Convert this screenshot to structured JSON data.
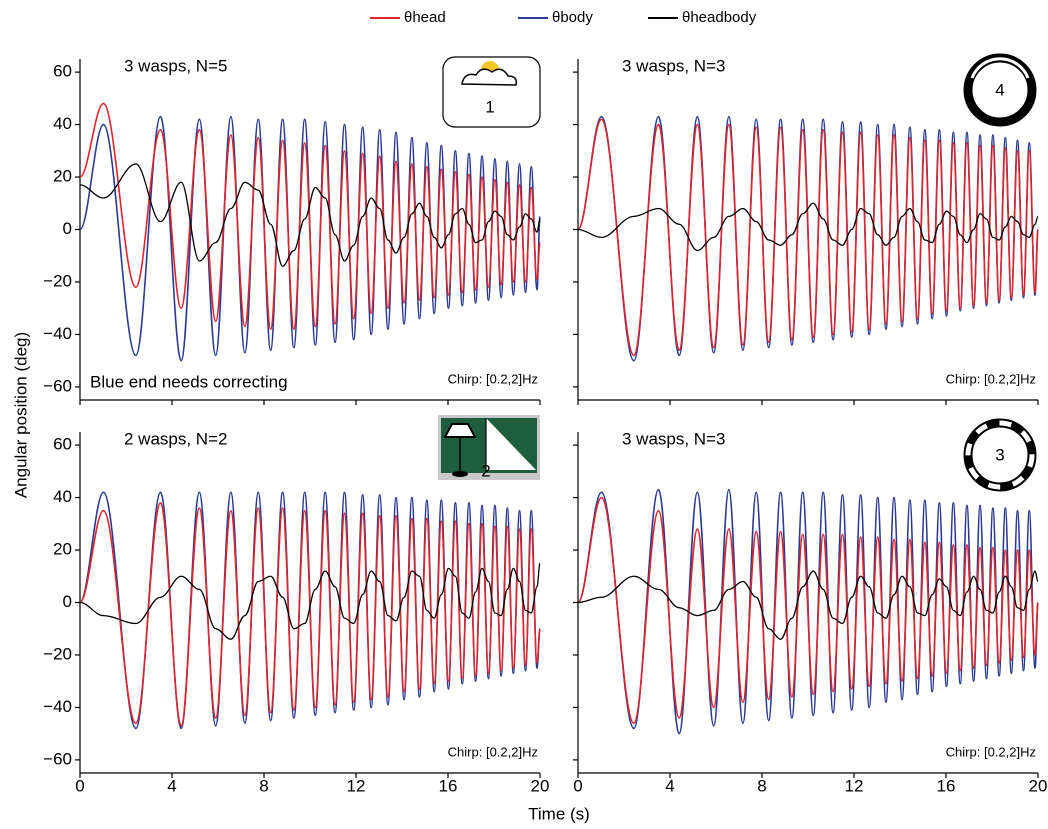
{
  "ylabel": "Angular position (deg)",
  "xlabel": "Time (s)",
  "chart_data": [
    {
      "type": "line",
      "title": "3 wasps, N=5",
      "annotation": "Chirp: [0.2,2]Hz",
      "note": "Blue end needs correcting",
      "icon_label": "1",
      "xlim": [
        0,
        20
      ],
      "ylim": [
        -65,
        65
      ],
      "xtick_labels": false,
      "ytick_labels": true,
      "xticks": [
        0,
        4,
        8,
        12,
        16,
        20
      ],
      "yticks": [
        {
          "value": -60,
          "label": "−60"
        },
        {
          "value": -40,
          "label": "−40"
        },
        {
          "value": -20,
          "label": "−20"
        },
        0,
        20,
        40,
        60
      ],
      "x": [
        0,
        1.02,
        2.43,
        3.5,
        4.4,
        5.19,
        5.9,
        6.56,
        7.17,
        7.75,
        8.29,
        8.81,
        9.3,
        9.77,
        10.23,
        10.66,
        11.09,
        11.5,
        11.9,
        12.29,
        12.66,
        13.03,
        13.39,
        13.74,
        14.09,
        14.43,
        14.76,
        15.08,
        15.4,
        15.71,
        16.02,
        16.32,
        16.62,
        16.91,
        17.2,
        17.48,
        17.76,
        18.04,
        18.31,
        18.58,
        18.84,
        19.11,
        19.37,
        19.62,
        19.87,
        20
      ],
      "series": [
        {
          "name": "θhead",
          "color": "#e0242b",
          "values": [
            20,
            48,
            -22,
            38,
            -30,
            38,
            -35,
            36,
            -37,
            35,
            -38,
            34,
            -38,
            33,
            -37,
            32,
            -36,
            30,
            -34,
            29,
            -32,
            28,
            -30,
            26,
            -28,
            25,
            -27,
            24,
            -26,
            23,
            -25,
            22,
            -24,
            21,
            -23,
            20,
            -22,
            19,
            -21,
            18,
            -20,
            17,
            -20,
            16,
            -19,
            -5
          ]
        },
        {
          "name": "θbody",
          "color": "#2a3a92",
          "values": [
            0,
            40,
            -48,
            43,
            -50,
            42,
            -48,
            43,
            -47,
            42,
            -46,
            42,
            -45,
            42,
            -44,
            41,
            -43,
            40,
            -42,
            39,
            -40,
            38,
            -38,
            37,
            -36,
            35,
            -34,
            33,
            -32,
            32,
            -30,
            30,
            -29,
            29,
            -28,
            28,
            -27,
            27,
            -26,
            26,
            -25,
            25,
            -24,
            24,
            -23,
            5
          ]
        },
        {
          "name": "θheadbody",
          "color": "#000000",
          "values": [
            17,
            12,
            25,
            3,
            18,
            -12,
            -5,
            8,
            18,
            15,
            2,
            -14,
            -8,
            4,
            16,
            12,
            -2,
            -12,
            -6,
            5,
            12,
            8,
            -4,
            -9,
            -3,
            6,
            10,
            5,
            -3,
            -7,
            -2,
            6,
            8,
            2,
            -5,
            -4,
            3,
            7,
            5,
            -2,
            -4,
            1,
            6,
            4,
            -1,
            4
          ]
        }
      ]
    },
    {
      "type": "line",
      "title": "3 wasps, N=3",
      "annotation": "Chirp: [0.2,2]Hz",
      "icon_label": "4",
      "xlim": [
        0,
        20
      ],
      "ylim": [
        -65,
        65
      ],
      "xtick_labels": false,
      "ytick_labels": false,
      "xticks": [
        0,
        4,
        8,
        12,
        16,
        20
      ],
      "yticks": [
        -60,
        -40,
        -20,
        0,
        20,
        40,
        60
      ],
      "x": [
        0,
        1.02,
        2.43,
        3.5,
        4.4,
        5.19,
        5.9,
        6.56,
        7.17,
        7.75,
        8.29,
        8.81,
        9.3,
        9.77,
        10.23,
        10.66,
        11.09,
        11.5,
        11.9,
        12.29,
        12.66,
        13.03,
        13.39,
        13.74,
        14.09,
        14.43,
        14.76,
        15.08,
        15.4,
        15.71,
        16.02,
        16.32,
        16.62,
        16.91,
        17.2,
        17.48,
        17.76,
        18.04,
        18.31,
        18.58,
        18.84,
        19.11,
        19.37,
        19.62,
        19.87,
        20
      ],
      "series": [
        {
          "name": "θhead",
          "color": "#e0242b",
          "values": [
            0,
            42,
            -48,
            40,
            -46,
            40,
            -45,
            40,
            -44,
            39,
            -43,
            39,
            -42,
            38,
            -41,
            38,
            -40,
            37,
            -39,
            37,
            -38,
            36,
            -36,
            36,
            -35,
            35,
            -34,
            34,
            -32,
            34,
            -31,
            33,
            -30,
            33,
            -29,
            32,
            -28,
            32,
            -27,
            31,
            -26,
            30,
            -25,
            30,
            -24,
            0
          ]
        },
        {
          "name": "θbody",
          "color": "#2a3a92",
          "values": [
            0,
            43,
            -50,
            43,
            -48,
            43,
            -47,
            43,
            -46,
            42,
            -45,
            42,
            -44,
            42,
            -43,
            42,
            -42,
            41,
            -41,
            41,
            -40,
            40,
            -38,
            40,
            -37,
            39,
            -36,
            38,
            -34,
            38,
            -33,
            37,
            -31,
            37,
            -30,
            36,
            -29,
            36,
            -28,
            35,
            -27,
            34,
            -26,
            33,
            -25,
            0
          ]
        },
        {
          "name": "θheadbody",
          "color": "#000000",
          "values": [
            0,
            -3,
            5,
            8,
            2,
            -8,
            -3,
            5,
            8,
            3,
            -4,
            -6,
            -2,
            6,
            10,
            4,
            -4,
            -6,
            0,
            8,
            6,
            -2,
            -6,
            -3,
            5,
            8,
            3,
            -4,
            -5,
            2,
            7,
            5,
            -2,
            -5,
            0,
            6,
            4,
            -3,
            -4,
            1,
            5,
            3,
            -2,
            -3,
            2,
            5
          ]
        }
      ]
    },
    {
      "type": "line",
      "title": "2 wasps, N=2",
      "annotation": "Chirp: [0.2,2]Hz",
      "icon_label": "2",
      "xlim": [
        0,
        20
      ],
      "ylim": [
        -65,
        65
      ],
      "xtick_labels": true,
      "ytick_labels": true,
      "xticks": [
        0,
        4,
        8,
        12,
        16,
        20
      ],
      "yticks": [
        {
          "value": -60,
          "label": "−60"
        },
        {
          "value": -40,
          "label": "−40"
        },
        {
          "value": -20,
          "label": "−20"
        },
        0,
        20,
        40,
        60
      ],
      "x": [
        0,
        1.02,
        2.43,
        3.5,
        4.4,
        5.19,
        5.9,
        6.56,
        7.17,
        7.75,
        8.29,
        8.81,
        9.3,
        9.77,
        10.23,
        10.66,
        11.09,
        11.5,
        11.9,
        12.29,
        12.66,
        13.03,
        13.39,
        13.74,
        14.09,
        14.43,
        14.76,
        15.08,
        15.4,
        15.71,
        16.02,
        16.32,
        16.62,
        16.91,
        17.2,
        17.48,
        17.76,
        18.04,
        18.31,
        18.58,
        18.84,
        19.11,
        19.37,
        19.62,
        19.87,
        20
      ],
      "series": [
        {
          "name": "θhead",
          "color": "#e0242b",
          "values": [
            0,
            35,
            -46,
            38,
            -47,
            36,
            -44,
            35,
            -43,
            36,
            -42,
            36,
            -41,
            35,
            -40,
            35,
            -39,
            34,
            -38,
            34,
            -37,
            33,
            -36,
            33,
            -34,
            32,
            -33,
            32,
            -31,
            31,
            -30,
            31,
            -29,
            30,
            -28,
            30,
            -27,
            29,
            -26,
            29,
            -25,
            28,
            -24,
            28,
            -23,
            -10
          ]
        },
        {
          "name": "θbody",
          "color": "#2a3a92",
          "values": [
            0,
            42,
            -48,
            42,
            -48,
            42,
            -47,
            42,
            -46,
            42,
            -45,
            42,
            -44,
            42,
            -43,
            42,
            -42,
            42,
            -41,
            41,
            -40,
            41,
            -39,
            40,
            -37,
            40,
            -36,
            39,
            -34,
            39,
            -33,
            38,
            -31,
            38,
            -30,
            37,
            -29,
            37,
            -28,
            36,
            -27,
            35,
            -26,
            35,
            -25,
            -10
          ]
        },
        {
          "name": "θheadbody",
          "color": "#000000",
          "values": [
            0,
            -5,
            -8,
            2,
            10,
            5,
            -10,
            -14,
            -5,
            8,
            10,
            2,
            -10,
            -8,
            5,
            12,
            6,
            -6,
            -8,
            3,
            12,
            8,
            -5,
            -7,
            2,
            12,
            10,
            -3,
            -6,
            3,
            13,
            10,
            -4,
            -6,
            4,
            13,
            8,
            -4,
            -5,
            5,
            13,
            8,
            -3,
            -4,
            6,
            15
          ]
        }
      ]
    },
    {
      "type": "line",
      "title": "3 wasps, N=3",
      "annotation": "Chirp: [0.2,2]Hz",
      "icon_label": "3",
      "xlim": [
        0,
        20
      ],
      "ylim": [
        -65,
        65
      ],
      "xtick_labels": true,
      "ytick_labels": false,
      "xticks": [
        0,
        4,
        8,
        12,
        16,
        20
      ],
      "yticks": [
        -60,
        -40,
        -20,
        0,
        20,
        40,
        60
      ],
      "x": [
        0,
        1.02,
        2.43,
        3.5,
        4.4,
        5.19,
        5.9,
        6.56,
        7.17,
        7.75,
        8.29,
        8.81,
        9.3,
        9.77,
        10.23,
        10.66,
        11.09,
        11.5,
        11.9,
        12.29,
        12.66,
        13.03,
        13.39,
        13.74,
        14.09,
        14.43,
        14.76,
        15.08,
        15.4,
        15.71,
        16.02,
        16.32,
        16.62,
        16.91,
        17.2,
        17.48,
        17.76,
        18.04,
        18.31,
        18.58,
        18.84,
        19.11,
        19.37,
        19.62,
        19.87,
        20
      ],
      "series": [
        {
          "name": "θhead",
          "color": "#e0242b",
          "values": [
            0,
            40,
            -46,
            35,
            -44,
            28,
            -40,
            28,
            -38,
            27,
            -37,
            27,
            -36,
            26,
            -35,
            26,
            -34,
            26,
            -33,
            25,
            -32,
            25,
            -31,
            24,
            -30,
            24,
            -29,
            23,
            -28,
            23,
            -27,
            22,
            -26,
            22,
            -25,
            21,
            -24,
            21,
            -23,
            20,
            -22,
            20,
            -21,
            20,
            -20,
            0
          ]
        },
        {
          "name": "θbody",
          "color": "#2a3a92",
          "values": [
            0,
            42,
            -48,
            43,
            -50,
            42,
            -47,
            43,
            -46,
            42,
            -45,
            42,
            -44,
            42,
            -43,
            42,
            -42,
            41,
            -41,
            41,
            -40,
            40,
            -38,
            40,
            -37,
            39,
            -35,
            39,
            -34,
            38,
            -32,
            38,
            -31,
            37,
            -30,
            37,
            -29,
            36,
            -28,
            36,
            -27,
            35,
            -26,
            35,
            -25,
            0
          ]
        },
        {
          "name": "θheadbody",
          "color": "#000000",
          "values": [
            0,
            2,
            10,
            5,
            -2,
            -5,
            -3,
            5,
            8,
            2,
            -10,
            -14,
            -6,
            6,
            12,
            5,
            -6,
            -8,
            2,
            10,
            6,
            -4,
            -6,
            3,
            10,
            6,
            -4,
            -5,
            3,
            9,
            6,
            -3,
            -5,
            4,
            10,
            5,
            -3,
            -4,
            4,
            10,
            6,
            -2,
            -3,
            5,
            12,
            8
          ]
        }
      ]
    }
  ]
}
